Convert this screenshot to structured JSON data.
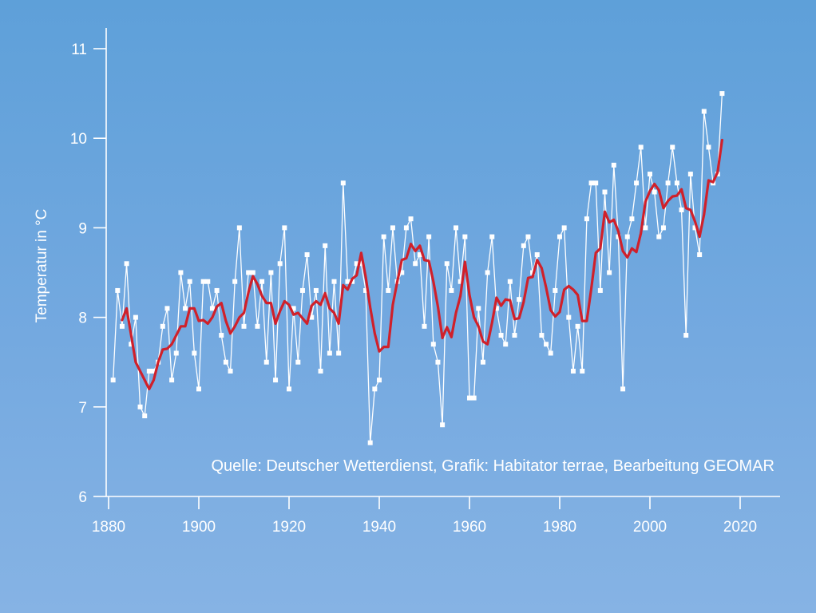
{
  "chart_data": {
    "type": "line",
    "title": "",
    "xlabel": "",
    "ylabel": "Temperatur in °C",
    "annotation": "Quelle: Deutscher Wetterdienst, Grafik: Habitator terrae, Bearbeitung GEOMAR",
    "xlim": [
      1881,
      2023
    ],
    "ylim": [
      6,
      11.2
    ],
    "xticks": [
      1880,
      1900,
      1920,
      1940,
      1960,
      1980,
      2000,
      2020
    ],
    "yticks": [
      6,
      7,
      8,
      9,
      10,
      11
    ],
    "grid": false,
    "colors": {
      "annual": "#ffffff",
      "smoothed": "#d0202a",
      "axis": "#ffffff"
    },
    "x_start": 1881,
    "series": [
      {
        "values": [
          7.3,
          8.3,
          7.9,
          8.6,
          7.7,
          8.0,
          7.0,
          6.9,
          7.4,
          7.4,
          7.5,
          7.9,
          8.1,
          7.3,
          7.6,
          8.5,
          8.1,
          8.4,
          7.6,
          7.2,
          8.4,
          8.4,
          8.1,
          8.3,
          7.8,
          7.5,
          7.4,
          8.4,
          9.0,
          7.9,
          8.5,
          8.5,
          7.9,
          8.4,
          7.5,
          8.5,
          7.3,
          8.6,
          9.0,
          7.2,
          8.1,
          7.5,
          8.3,
          8.7,
          8.0,
          8.3,
          7.4,
          8.8,
          7.6,
          8.4,
          7.6,
          9.5,
          8.4,
          8.4,
          8.6,
          8.6,
          8.3,
          6.6,
          7.2,
          7.3,
          8.9,
          8.3,
          9.0,
          8.4,
          8.5,
          9.0,
          9.1,
          8.6,
          8.7,
          7.9,
          8.9,
          7.7,
          7.5,
          6.8,
          8.6,
          8.3,
          9.0,
          8.4,
          8.9,
          7.1,
          7.1,
          8.1,
          7.5,
          8.5,
          8.9,
          8.1,
          7.8,
          7.7,
          8.4,
          7.8,
          8.2,
          8.8,
          8.9,
          8.5,
          8.7,
          7.8,
          7.7,
          7.6,
          8.3,
          8.9,
          9.0,
          8.0,
          7.4,
          7.9,
          7.4,
          9.1,
          9.5,
          9.5,
          8.3,
          9.4,
          8.5,
          9.7,
          8.9,
          7.2,
          8.9,
          9.1,
          9.5,
          9.9,
          9.0,
          9.6,
          9.4,
          8.9,
          9.0,
          9.5,
          9.9,
          9.5,
          9.2,
          7.8,
          9.6,
          9.0,
          8.7,
          10.3,
          9.9,
          9.5,
          9.6,
          10.5
        ]
      },
      {
        "x_start": 1883,
        "values": [
          7.97,
          8.1,
          7.8,
          7.5,
          7.4,
          7.3,
          7.2,
          7.3,
          7.5,
          7.64,
          7.65,
          7.7,
          7.8,
          7.9,
          7.9,
          8.1,
          8.1,
          7.96,
          7.97,
          7.93,
          8.0,
          8.12,
          8.16,
          7.96,
          7.82,
          7.9,
          8.0,
          8.05,
          8.28,
          8.46,
          8.37,
          8.24,
          8.16,
          8.16,
          7.93,
          8.07,
          8.18,
          8.14,
          8.03,
          8.05,
          7.99,
          7.93,
          8.13,
          8.18,
          8.14,
          8.27,
          8.1,
          8.05,
          7.93,
          8.36,
          8.31,
          8.43,
          8.47,
          8.72,
          8.45,
          8.11,
          7.82,
          7.62,
          7.67,
          7.67,
          8.14,
          8.4,
          8.64,
          8.66,
          8.82,
          8.74,
          8.8,
          8.64,
          8.63,
          8.4,
          8.12,
          7.77,
          7.89,
          7.78,
          8.05,
          8.24,
          8.62,
          8.25,
          8.0,
          7.9,
          7.73,
          7.7,
          7.94,
          8.22,
          8.13,
          8.2,
          8.19,
          7.98,
          7.99,
          8.17,
          8.44,
          8.45,
          8.64,
          8.55,
          8.33,
          8.08,
          8.01,
          8.06,
          8.31,
          8.35,
          8.31,
          8.25,
          7.96,
          7.96,
          8.32,
          8.72,
          8.77,
          9.18,
          9.06,
          9.09,
          8.96,
          8.74,
          8.67,
          8.77,
          8.73,
          8.94,
          9.29,
          9.41,
          9.49,
          9.42,
          9.22,
          9.3,
          9.35,
          9.36,
          9.43,
          9.22,
          9.2,
          9.07,
          8.9,
          9.15,
          9.53,
          9.51,
          9.62,
          9.98
        ]
      }
    ]
  }
}
